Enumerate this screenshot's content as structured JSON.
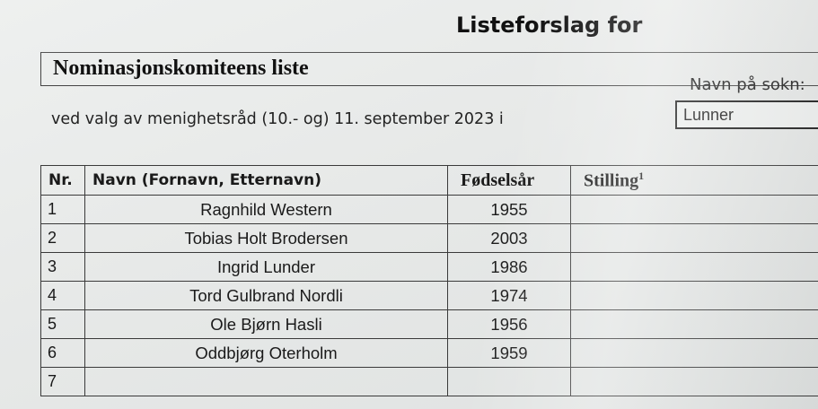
{
  "header": {
    "top_title": "Listeforslag for",
    "list_title": "Nominasjonskomiteens liste",
    "sokn_label": "Navn på sokn:",
    "sokn_value": "Lunner",
    "subtitle": "ved valg av menighetsråd (10.- og) 11. september 2023 i"
  },
  "table": {
    "columns": {
      "nr": "Nr.",
      "navn": "Navn (Fornavn, Etternavn)",
      "fodselsar": "Fødselsår",
      "stilling": "Stilling",
      "stilling_footnote": "1"
    },
    "rows": [
      {
        "nr": "1",
        "navn": "Ragnhild Western",
        "year": "1955",
        "stilling": ""
      },
      {
        "nr": "2",
        "navn": "Tobias Holt Brodersen",
        "year": "2003",
        "stilling": ""
      },
      {
        "nr": "3",
        "navn": "Ingrid Lunder",
        "year": "1986",
        "stilling": ""
      },
      {
        "nr": "4",
        "navn": "Tord Gulbrand Nordli",
        "year": "1974",
        "stilling": ""
      },
      {
        "nr": "5",
        "navn": "Ole Bjørn Hasli",
        "year": "1956",
        "stilling": ""
      },
      {
        "nr": "6",
        "navn": "Oddbjørg Oterholm",
        "year": "1959",
        "stilling": ""
      },
      {
        "nr": "7",
        "navn": "",
        "year": "",
        "stilling": ""
      }
    ]
  }
}
